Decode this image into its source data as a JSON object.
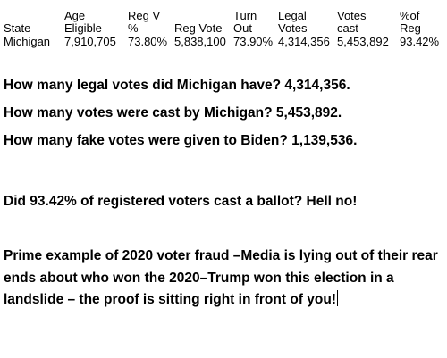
{
  "table": {
    "header_row1": [
      "",
      "Age",
      "Reg V",
      "",
      "Turn",
      "Legal",
      "Votes",
      "%of"
    ],
    "header_row2": [
      "State",
      "Eligible",
      "%",
      "Reg Vote",
      "Out",
      "Votes",
      "cast",
      "Reg"
    ],
    "row": [
      "Michigan",
      "7,910,705",
      "73.80%",
      "5,838,100",
      "73.90%",
      "4,314,356",
      "5,453,892",
      "93.42%"
    ]
  },
  "questions": [
    "How many legal votes did Michigan have? 4,314,356.",
    "How many votes were cast by Michigan?  5,453,892.",
    "How many fake votes were given to Biden? 1,139,536.",
    "Did 93.42% of registered voters cast a ballot?  Hell no!"
  ],
  "paragraph": "Prime example of 2020 voter fraud –Media is lying out of their rear ends about who won the 2020–Trump won this election in a landslide – the proof is sitting right in front of you!"
}
